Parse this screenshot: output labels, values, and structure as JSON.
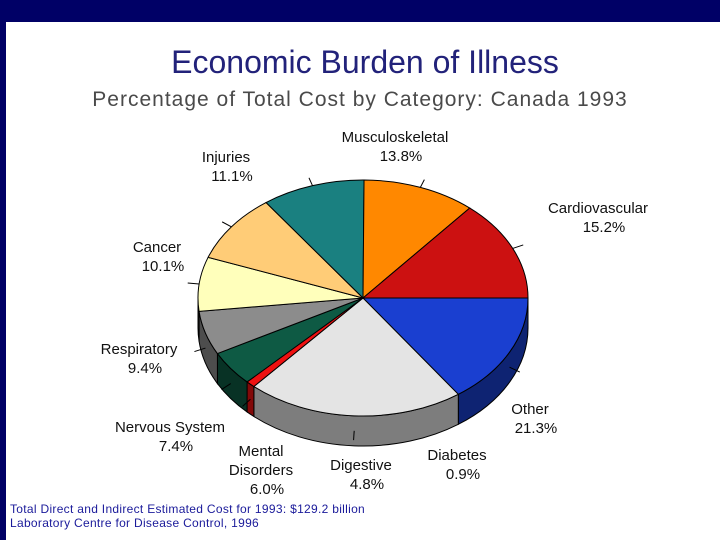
{
  "title": "Economic Burden of Illness",
  "subtitle": "Percentage of Total Cost by Category: Canada 1993",
  "footnotes": [
    "Total Direct and Indirect Estimated Cost for 1993: $129.2 billion",
    "Laboratory Centre for Disease Control, 1996"
  ],
  "chart_data": {
    "type": "pie",
    "title": "Economic Burden of Illness",
    "subtitle": "Percentage of Total Cost by Category: Canada 1993",
    "unit": "%",
    "three_d": true,
    "slices": [
      {
        "name": "Cardiovascular",
        "label_lines": [
          "Cardiovascular"
        ],
        "value": 15.2,
        "value_text": "15.2%",
        "color": "#1a3fd0"
      },
      {
        "name": "Other",
        "label_lines": [
          "Other"
        ],
        "value": 21.3,
        "value_text": "21.3%",
        "color": "#e4e4e4"
      },
      {
        "name": "Diabetes",
        "label_lines": [
          "Diabetes"
        ],
        "value": 0.9,
        "value_text": "0.9%",
        "color": "#ee1111"
      },
      {
        "name": "Digestive",
        "label_lines": [
          "Digestive"
        ],
        "value": 4.8,
        "value_text": "4.8%",
        "color": "#0e5a44"
      },
      {
        "name": "Mental Disorders",
        "label_lines": [
          "Mental",
          "Disorders"
        ],
        "value": 6.0,
        "value_text": "6.0%",
        "color": "#8c8c8c"
      },
      {
        "name": "Nervous System",
        "label_lines": [
          "Nervous System"
        ],
        "value": 7.4,
        "value_text": "7.4%",
        "color": "#ffffbb"
      },
      {
        "name": "Respiratory",
        "label_lines": [
          "Respiratory"
        ],
        "value": 9.4,
        "value_text": "9.4%",
        "color": "#ffcc77"
      },
      {
        "name": "Cancer",
        "label_lines": [
          "Cancer"
        ],
        "value": 10.1,
        "value_text": "10.1%",
        "color": "#1a8080"
      },
      {
        "name": "Injuries",
        "label_lines": [
          "Injuries"
        ],
        "value": 11.1,
        "value_text": "11.1%",
        "color": "#ff8800"
      },
      {
        "name": "Musculoskeletal",
        "label_lines": [
          "Musculoskeletal"
        ],
        "value": 13.8,
        "value_text": "13.8%",
        "color": "#cc1111"
      }
    ]
  }
}
